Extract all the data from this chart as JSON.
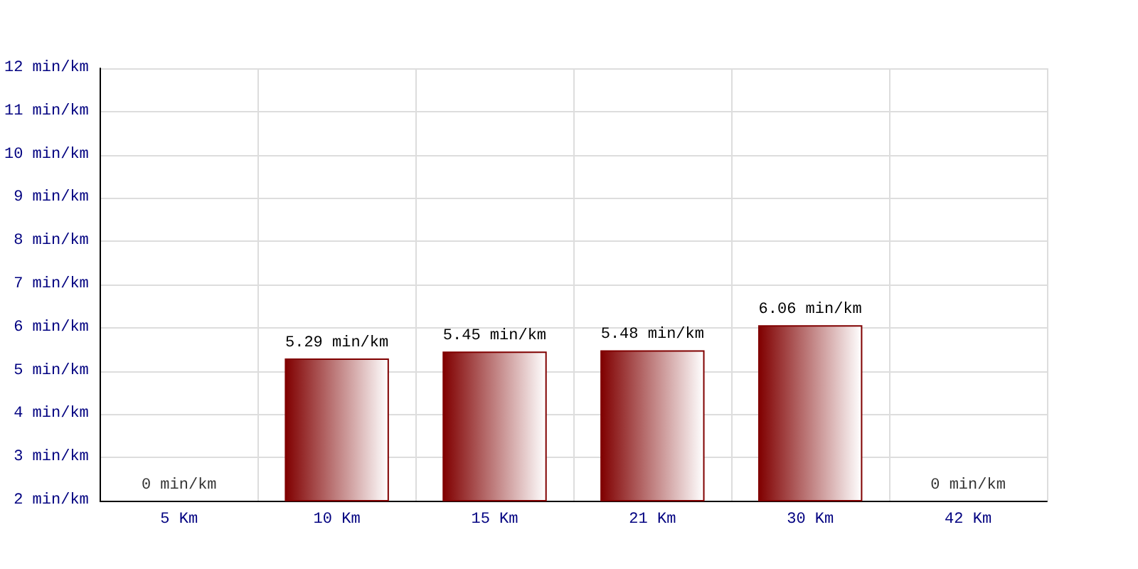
{
  "chart_data": {
    "type": "bar",
    "categories": [
      "5 Km",
      "10 Km",
      "15 Km",
      "21 Km",
      "30 Km",
      "42 Km"
    ],
    "values": [
      null,
      5.29,
      5.45,
      5.48,
      6.06,
      null
    ],
    "value_labels": [
      null,
      "5.29 min/km",
      "5.45 min/km",
      "5.48 min/km",
      "6.06 min/km",
      null
    ],
    "color": "#800000",
    "annotations": [
      "0 min/km",
      "0 min/km"
    ],
    "ylim": [
      2,
      12
    ],
    "yticks": [
      {
        "value": 2,
        "label": "2 min/km"
      },
      {
        "value": 3,
        "label": "3 min/km"
      },
      {
        "value": 4,
        "label": "4 min/km"
      },
      {
        "value": 5,
        "label": "5 min/km"
      },
      {
        "value": 6,
        "label": "6 min/km"
      },
      {
        "value": 7,
        "label": "7 min/km"
      },
      {
        "value": 8,
        "label": "8 min/km"
      },
      {
        "value": 9,
        "label": "9 min/km"
      },
      {
        "value": 10,
        "label": "10 min/km"
      },
      {
        "value": 11,
        "label": "11 min/km"
      },
      {
        "value": 12,
        "label": "12 min/km"
      }
    ],
    "grid": true
  }
}
